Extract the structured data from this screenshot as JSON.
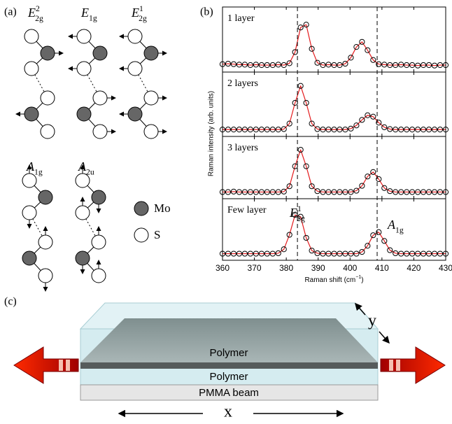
{
  "panel_labels": [
    "(a)",
    "(b)",
    "(c)"
  ],
  "modes": {
    "labels": [
      {
        "base": "E",
        "sub": "2g",
        "sup": "2"
      },
      {
        "base": "E",
        "sub": "1g"
      },
      {
        "base": "E",
        "sub": "2g",
        "sup": "1"
      },
      {
        "base": "A",
        "sub": "1g"
      },
      {
        "base": "A",
        "sub": "2u"
      }
    ],
    "legend": [
      "Mo",
      "S"
    ]
  },
  "chart_data": {
    "type": "scatter",
    "xlabel": [
      "Raman shift (cm",
      "−1",
      ")"
    ],
    "ylabel": "Raman intensity (arb. units)",
    "xlim": [
      360,
      430
    ],
    "xticks": [
      360,
      370,
      380,
      390,
      400,
      410,
      420,
      430
    ],
    "ylim": [
      -0.1,
      1.3
    ],
    "reference_lines": [
      383.5,
      408.5
    ],
    "marker_color": "#000000",
    "fit_color": "#e41a1c",
    "x": [
      360,
      361.75,
      363.5,
      365.25,
      367,
      368.75,
      370.5,
      372.25,
      374,
      375.75,
      377.5,
      379.25,
      381,
      382.75,
      384.5,
      386.25,
      388,
      389.75,
      391.5,
      393.25,
      395,
      396.75,
      398.5,
      400.25,
      402,
      403.75,
      405.5,
      407.25,
      409,
      410.75,
      412.5,
      414.25,
      416,
      417.75,
      419.5,
      421.25,
      423,
      424.75,
      426.5,
      428.25,
      430
    ],
    "panels": [
      {
        "label": "1 layer",
        "values": [
          0.07,
          0.08,
          0.07,
          0.06,
          0.06,
          0.05,
          0.06,
          0.05,
          0.05,
          0.05,
          0.06,
          0.05,
          0.09,
          0.33,
          0.86,
          0.92,
          0.4,
          0.1,
          0.05,
          0.06,
          0.05,
          0.05,
          0.08,
          0.21,
          0.44,
          0.55,
          0.37,
          0.16,
          0.07,
          0.06,
          0.05,
          0.05,
          0.06,
          0.05,
          0.05,
          0.04,
          0.05,
          0.05,
          0.04,
          0.05,
          0.05
        ]
      },
      {
        "label": "2 layers",
        "values": [
          0.05,
          0.05,
          0.05,
          0.05,
          0.05,
          0.05,
          0.05,
          0.05,
          0.05,
          0.05,
          0.05,
          0.06,
          0.18,
          0.63,
          1.0,
          0.63,
          0.18,
          0.06,
          0.05,
          0.05,
          0.05,
          0.05,
          0.05,
          0.07,
          0.14,
          0.26,
          0.36,
          0.33,
          0.2,
          0.1,
          0.06,
          0.05,
          0.05,
          0.05,
          0.05,
          0.05,
          0.05,
          0.05,
          0.05,
          0.05,
          0.05
        ]
      },
      {
        "label": "3 layers",
        "values": [
          0.05,
          0.05,
          0.06,
          0.05,
          0.05,
          0.05,
          0.05,
          0.05,
          0.05,
          0.05,
          0.05,
          0.06,
          0.18,
          0.63,
          1.0,
          0.63,
          0.18,
          0.07,
          0.05,
          0.05,
          0.05,
          0.05,
          0.05,
          0.05,
          0.08,
          0.19,
          0.4,
          0.5,
          0.34,
          0.14,
          0.07,
          0.05,
          0.05,
          0.05,
          0.05,
          0.05,
          0.05,
          0.05,
          0.05,
          0.05,
          0.05
        ]
      },
      {
        "label": "Few layer",
        "values": [
          0.05,
          0.05,
          0.05,
          0.05,
          0.05,
          0.05,
          0.05,
          0.05,
          0.05,
          0.05,
          0.06,
          0.15,
          0.48,
          0.93,
          0.89,
          0.41,
          0.12,
          0.06,
          0.05,
          0.05,
          0.05,
          0.05,
          0.05,
          0.05,
          0.05,
          0.09,
          0.23,
          0.47,
          0.54,
          0.34,
          0.13,
          0.06,
          0.05,
          0.05,
          0.05,
          0.05,
          0.05,
          0.05,
          0.05,
          0.05,
          0.05
        ]
      }
    ],
    "annotations": [
      {
        "base": "E",
        "sub": "2g",
        "sup": "1"
      },
      {
        "base": "A",
        "sub": "1g"
      }
    ]
  },
  "device": {
    "layers": [
      "Polymer",
      "Polymer",
      "PMMA beam"
    ],
    "axes": [
      "x",
      "y"
    ]
  }
}
